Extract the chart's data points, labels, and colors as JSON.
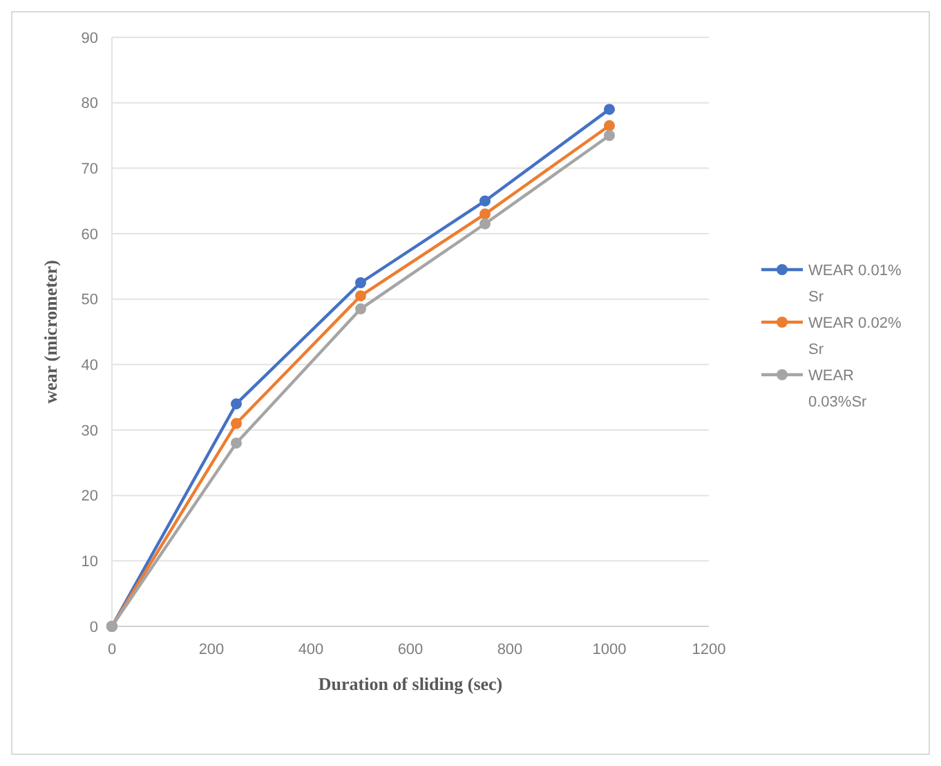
{
  "chart_data": {
    "type": "line",
    "xlabel": "Duration of sliding (sec)",
    "ylabel": "wear (micrometer)",
    "x": [
      0,
      250,
      500,
      750,
      1000
    ],
    "series": [
      {
        "name": "WEAR 0.01% Sr",
        "color": "#4472c4",
        "values": [
          0,
          34,
          52.5,
          65,
          79
        ]
      },
      {
        "name": "WEAR 0.02% Sr",
        "color": "#ed7d31",
        "values": [
          0,
          31,
          50.5,
          63,
          76.5
        ]
      },
      {
        "name": "WEAR 0.03%Sr",
        "color": "#a5a5a5",
        "values": [
          0,
          28,
          48.5,
          61.5,
          75
        ]
      }
    ],
    "xlim": [
      0,
      1200
    ],
    "xticks": [
      0,
      200,
      400,
      600,
      800,
      1000,
      1200
    ],
    "ylim": [
      0,
      90
    ],
    "yticks": [
      0,
      10,
      20,
      30,
      40,
      50,
      60,
      70,
      80,
      90
    ],
    "grid": "y",
    "legend": "right",
    "marker": "circle",
    "line_style": "solid"
  }
}
